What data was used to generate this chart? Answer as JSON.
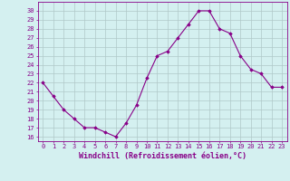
{
  "x": [
    0,
    1,
    2,
    3,
    4,
    5,
    6,
    7,
    8,
    9,
    10,
    11,
    12,
    13,
    14,
    15,
    16,
    17,
    18,
    19,
    20,
    21,
    22,
    23
  ],
  "y": [
    22,
    20.5,
    19,
    18,
    17,
    17,
    16.5,
    16,
    17.5,
    19.5,
    22.5,
    25,
    25.5,
    27,
    28.5,
    30,
    30,
    28,
    27.5,
    25,
    23.5,
    23,
    21.5,
    21.5
  ],
  "line_color": "#880088",
  "marker": "D",
  "markersize": 1.8,
  "linewidth": 0.8,
  "xlabel": "Windchill (Refroidissement éolien,°C)",
  "xlabel_fontsize": 6.0,
  "xlim": [
    -0.5,
    23.5
  ],
  "ylim": [
    15.5,
    31
  ],
  "yticks": [
    16,
    17,
    18,
    19,
    20,
    21,
    22,
    23,
    24,
    25,
    26,
    27,
    28,
    29,
    30
  ],
  "xticks": [
    0,
    1,
    2,
    3,
    4,
    5,
    6,
    7,
    8,
    9,
    10,
    11,
    12,
    13,
    14,
    15,
    16,
    17,
    18,
    19,
    20,
    21,
    22,
    23
  ],
  "background_color": "#d4f0f0",
  "grid_color": "#b0c8c8",
  "tick_fontsize": 5.0,
  "tick_color": "#880088",
  "label_color": "#880088",
  "spine_color": "#880088"
}
